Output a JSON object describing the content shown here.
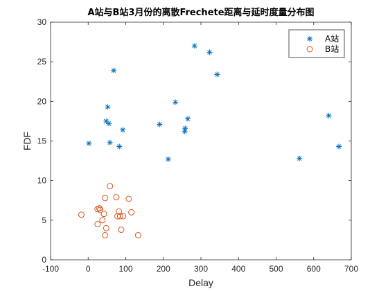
{
  "chart_data": {
    "type": "scatter",
    "title": "A站与B站3月份的离散Frechete距离与延时度量分布图",
    "xlabel": "Delay",
    "ylabel": "FDF",
    "xlim": [
      -100,
      700
    ],
    "ylim": [
      0,
      30
    ],
    "xticks": [
      -100,
      0,
      100,
      200,
      300,
      400,
      500,
      600,
      700
    ],
    "yticks": [
      0,
      5,
      10,
      15,
      20,
      25,
      30
    ],
    "xtick_labels": [
      "-100",
      "0",
      "100",
      "200",
      "300",
      "400",
      "500",
      "600",
      "700"
    ],
    "ytick_labels": [
      "0",
      "5",
      "10",
      "15",
      "20",
      "25",
      "30"
    ],
    "grid": false,
    "legend_position": "top-right",
    "series": [
      {
        "name": "A站",
        "marker": "asterisk",
        "color": "#0072BD",
        "points": [
          {
            "x": 2,
            "y": 14.7
          },
          {
            "x": 48,
            "y": 17.5
          },
          {
            "x": 52,
            "y": 19.3
          },
          {
            "x": 55,
            "y": 17.2
          },
          {
            "x": 58,
            "y": 14.8
          },
          {
            "x": 68,
            "y": 23.9
          },
          {
            "x": 83,
            "y": 14.3
          },
          {
            "x": 92,
            "y": 16.4
          },
          {
            "x": 190,
            "y": 17.1
          },
          {
            "x": 213,
            "y": 12.7
          },
          {
            "x": 232,
            "y": 19.9
          },
          {
            "x": 257,
            "y": 16.2
          },
          {
            "x": 258,
            "y": 16.6
          },
          {
            "x": 265,
            "y": 17.8
          },
          {
            "x": 283,
            "y": 27.0
          },
          {
            "x": 323,
            "y": 26.2
          },
          {
            "x": 343,
            "y": 23.4
          },
          {
            "x": 562,
            "y": 12.8
          },
          {
            "x": 640,
            "y": 18.2
          },
          {
            "x": 667,
            "y": 14.3
          }
        ]
      },
      {
        "name": "B站",
        "marker": "circle",
        "color": "#D95319",
        "points": [
          {
            "x": -18,
            "y": 5.7
          },
          {
            "x": 25,
            "y": 6.4
          },
          {
            "x": 25,
            "y": 4.5
          },
          {
            "x": 30,
            "y": 6.5
          },
          {
            "x": 32,
            "y": 6.3
          },
          {
            "x": 38,
            "y": 5.0
          },
          {
            "x": 42,
            "y": 5.8
          },
          {
            "x": 45,
            "y": 7.8
          },
          {
            "x": 45,
            "y": 3.1
          },
          {
            "x": 48,
            "y": 4.0
          },
          {
            "x": 58,
            "y": 9.3
          },
          {
            "x": 75,
            "y": 7.9
          },
          {
            "x": 78,
            "y": 5.5
          },
          {
            "x": 82,
            "y": 6.1
          },
          {
            "x": 85,
            "y": 5.5
          },
          {
            "x": 88,
            "y": 3.8
          },
          {
            "x": 93,
            "y": 5.5
          },
          {
            "x": 108,
            "y": 7.7
          },
          {
            "x": 115,
            "y": 6.0
          },
          {
            "x": 133,
            "y": 3.1
          }
        ]
      }
    ]
  }
}
